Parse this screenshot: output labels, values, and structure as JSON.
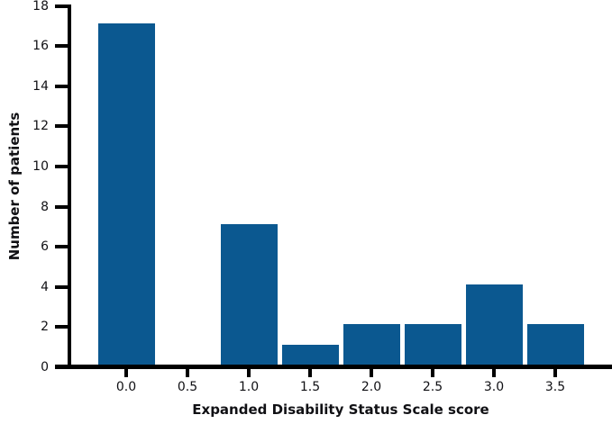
{
  "chart_data": {
    "type": "bar",
    "title": "",
    "categories": [
      "0.0",
      "0.5",
      "1.0",
      "1.5",
      "2.0",
      "2.5",
      "3.0",
      "3.5"
    ],
    "values": [
      17,
      0,
      7,
      1,
      2,
      2,
      4,
      2
    ],
    "xlabel": "Expanded Disability Status Scale score",
    "ylabel": "Number of patients",
    "ylim": [
      0,
      18
    ],
    "yticks": [
      0,
      2,
      4,
      6,
      8,
      10,
      12,
      14,
      16,
      18
    ],
    "grid": false,
    "legend": false,
    "bar_color": "#0b5890",
    "axis_color": "#000000",
    "text_color": "#101014",
    "background_color": "#ffffff"
  }
}
